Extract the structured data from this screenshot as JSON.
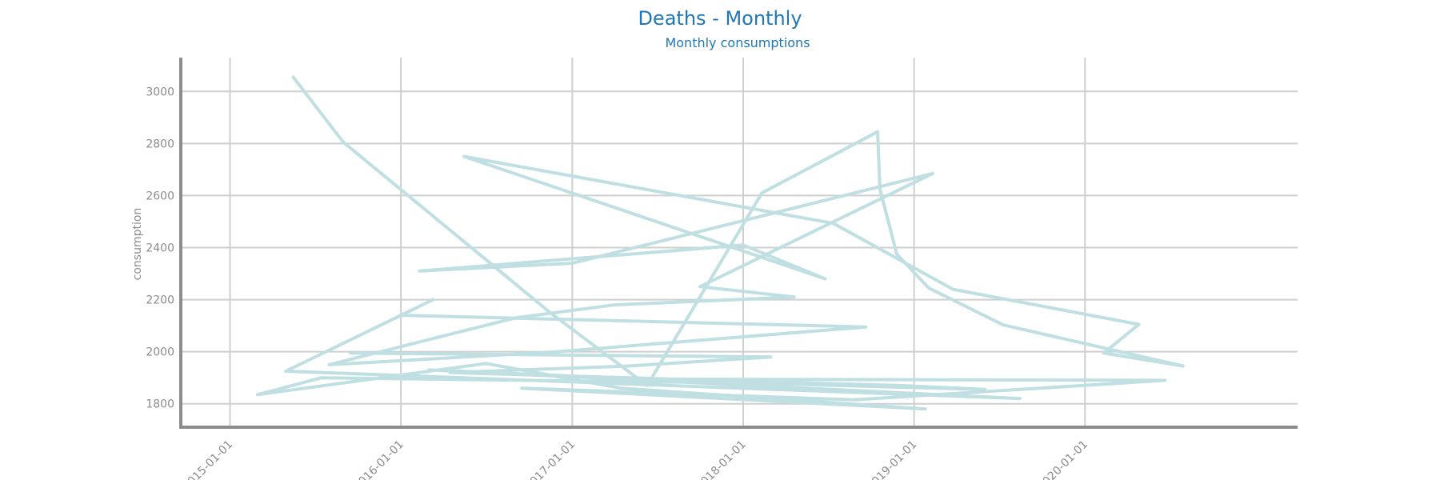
{
  "chart_data": {
    "type": "line",
    "title": "Deaths - Monthly",
    "subtitle": "Monthly consumptions",
    "xlabel": "",
    "ylabel": "consumption",
    "x_ticks": [
      "2015-01-01",
      "2016-01-01",
      "2017-01-01",
      "2018-01-01",
      "2019-01-01",
      "2020-01-01"
    ],
    "y_ticks": [
      1800,
      2000,
      2200,
      2400,
      2600,
      2800,
      3000
    ],
    "xlim": [
      "2014-09-18",
      "2021-03-30"
    ],
    "ylim": [
      1710,
      3130
    ],
    "grid": true,
    "legend": "none",
    "colors": {
      "line": "#bfdfe2",
      "title": "#1f77b4",
      "axis": "#8c8c8c",
      "grid": "#cfcfcf"
    },
    "series": [
      {
        "x": [
          "2015-05-16",
          "2015-08-31",
          "2016-11-15",
          "2017-06-10",
          "2018-02-10",
          "2018-10-15",
          "2018-10-20",
          "2018-11-25",
          "2019-02-01",
          "2019-07-10",
          "2020-07-28",
          "2020-02-10",
          "2020-04-25",
          "2019-03-25",
          "2018-07-13",
          "2016-05-15",
          "2018-06-25",
          "2018-01-01",
          "2016-02-10",
          "2017-01-01",
          "2019-02-10",
          "2017-10-01",
          "2018-04-20",
          "2017-04-01",
          "2016-09-01",
          "2015-08-01",
          "2016-12-01",
          "2018-09-20",
          "2016-01-01",
          "2016-03-10",
          "2015-04-30",
          "2019-08-15",
          "2016-03-01",
          "2017-06-01",
          "2020-06-20",
          "2018-08-25",
          "2016-09-15",
          "2019-01-25",
          "2017-04-15",
          "2016-07-01",
          "2015-03-01",
          "2015-07-15",
          "2018-01-01",
          "2019-06-01",
          "2018-12-01",
          "2017-11-01",
          "2016-04-15",
          "2017-05-01",
          "2018-03-01",
          "2015-09-15"
        ],
        "y": [
          3055,
          2805,
          2150,
          1870,
          2610,
          2845,
          2625,
          2375,
          2245,
          2103,
          1945,
          1995,
          2105,
          2240,
          2493,
          2750,
          2280,
          2410,
          2310,
          2340,
          2685,
          2250,
          2210,
          2180,
          2130,
          1950,
          2000,
          2095,
          2140,
          2200,
          1925,
          1820,
          1930,
          1895,
          1890,
          1815,
          1860,
          1780,
          1860,
          1955,
          1835,
          1900,
          1880,
          1855,
          1870,
          1890,
          1920,
          1945,
          1980,
          1995
        ]
      }
    ]
  }
}
